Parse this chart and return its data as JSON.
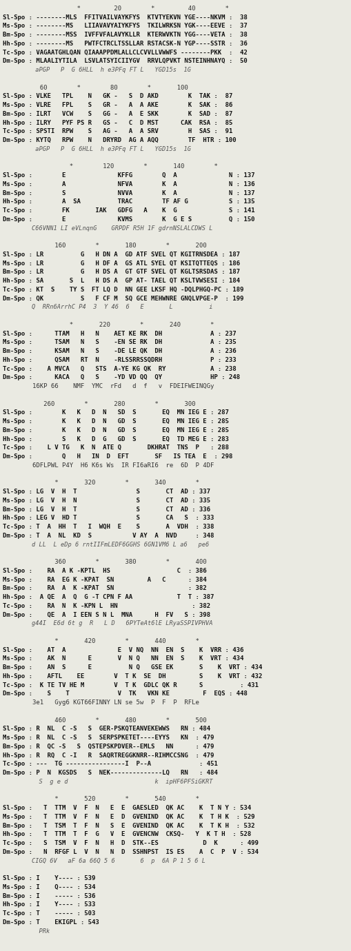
{
  "background_color": "#eaeae2",
  "font_size": 6.5,
  "lines": [
    "                    *         20        *         40        *",
    "Sl-Spo : --------MLS  FFITVAILVAYKFYS  KTVTYEKVN YGE----NKVM :  38",
    "Ms-Spo : --------MS   LIIAVAVYAIYKFYS  TKILWRKSN YGK----EEVE :  37",
    "Bm-Spo : --------MSS  IVFFVFALAVYKLLR  KTERWVKTN YGG----VETA :  38",
    "Hh-Spo : --------MS   PWTFCTRCLTSSLLAR RSTACSK-N YGP----SSTR :  36",
    "Tc-Spo : VAGAATGHLQAN QIAAAPPDMLALLCLCVVLLVWWFS --------PKK  :  42",
    "Dm-Spo : MLAALIYTILA  LSVLATSYICIIYGV  RRVLQPVKT NSTEINHNAYQ :  50",
    "         aPGP   P  G 6HLL  h e3PFq FT L   YGD15s  1G",
    "",
    "          60        *        80        *       100",
    "Sl-Spo : VLKE   TPL    N   GK -   S  D AKD        K  TAK :  87",
    "Ms-Spo : VLRE   FPL    S   GR -   A  A AKE        K  SAK :  86",
    "Bm-Spo : ILRT   VCW    S   GG -   A  E SKK        K  SAD :  87",
    "Hh-Spo : ILRY   PYF PS R   GS -   C  D MST      CAK  RSA :  85",
    "Tc-Spo : SPSTI  RPW    S   AG -   A  A SRV        H  SAS :  91",
    "Dm-Spo : KYTQ   RPW    N   DRYRD  AG A AQQ        TF  HTR : 100",
    "         aPGP   P  G 6HLL  h e3PFq FT L   YGD15s  1G",
    "",
    "                  *        120        *       140        *",
    "Sl-Spo :        E              KFFG        Q  A              N : 137",
    "Ms-Spo :        A              NFVA        K  A              N : 136",
    "Bm-Spo :        S              NVVA        K  A              N : 137",
    "Hh-Spo :        A  SA          TRAC        TF AF G           S : 135",
    "Tc-Spo :        FK       IAK   GDFG   A    K  G              S : 141",
    "Dm-Spo :        E              KVMS        K  G E S          Q : 150",
    "        C66VNN1 LI eVLnqnG    GRPDF R5H 1F gdrnNSLALCDWS L",
    "",
    "              160        *       180        *       200",
    "Sl-Spo : LR          G   H DN A  GD ATF SVEL QT KGITRNSDEA : 187",
    "Ms-Spo : LR          G   H DF A  GS ATL SYEL QT KSITQTTEQS : 186",
    "Bm-Spo : LR          G   H DS A  GT GTF SVEL QT KGLTSRSDAS : 187",
    "Hh-Spo : SA       S  L   H DS A  GP AT- TAEL QT KSLTVWSESI : 184",
    "Tc-Spo : KT  S    TY S  FT LQ D  NN GEE LKSF HQ -DQLPHGQ-PC : 189",
    "Dm-Spo : QK          S   F CF M  SQ GCE MEHWNRE GNQLVPGE-P  : 199",
    "        Q  RRn6ArrhC P4  3  Y 46  6   E       L          i",
    "",
    "                  *       220        *       240        *",
    "Sl-Spo :      TTAM   H   N    AET KE RK  DH             A : 237",
    "Ms-Spo :      TSAM   N   S    -EN SE RK  DH             A : 235",
    "Bm-Spo :      KSAM   N   S    -DE LE QK  DH             A : 236",
    "Hh-Spo :      QSAM   RT  N    -RLSSRRSSQDRH             P : 233",
    "Tc-Spo :    A MVCA   Q   STS  A-YE KG QK  RY            A : 238",
    "Dm-Spo :      KACA   Q   S    -YD VD QQ  QY             HP : 248",
    "        16KP 66    NMF  YMC  rFd   d  f   v  FDEIFWEINQGy",
    "",
    "           260        *       280        *       300",
    "Sl-Spo :        K   K   D  N   SD  S       EQ  MN IEG E : 287",
    "Ms-Spo :        K   K   D  N   GD  S       EQ  MN IEG E : 285",
    "Bm-Spo :        K   K   D  N   GD  S       EQ  MN IEG E : 285",
    "Hh-Spo :        S   K   D  G   GD  S       EQ  TD MEG E : 283",
    "Tc-Spo :    L V TG   K  N  ATE Q       DKHRAT  TNS  P   : 288",
    "Dm-Spo :        Q   H   IN  D  EFT       SF   IS TEA  E  : 298",
    "        6DFLPWL P4Y  H6 K6s Ws  IR FI6aRI6  re  6D  P 4DF",
    "",
    "              *       320        *       340        *",
    "Sl-Spo : LG  V  H  T                S       CT  AD : 337",
    "Ms-Spo : LG  V  H  N                S       CT  AD : 335",
    "Bm-Spo : LG  V  H  T                S       CT  AD : 336",
    "Hh-Spo : LEG V  HD T                S       CA   S  : 333",
    "Tc-Spo : T  A  HH  T   I  WQH  E    S       A  VDH  : 338",
    "Dm-Spo : T  A  NL  KD  S           V AY  A  NVD     : 348",
    "        d LL  L eDp 6 rntIIFmLEDF6GGHS 6GN1VM6 L a6   pe6",
    "",
    "              360        *       380        *       400",
    "Sl-Spo :    RA  A K -KPTL  HS                  C  : 386",
    "Ms-Spo :    RA  EG K -KPAT  SN         A   C      : 384",
    "Bm-Spo :    RA  A  K -KPAT  SN                    : 382",
    "Hh-Spo :  A QE  A  Q  G -T CPN F AA            T  T : 387",
    "Tc-Spo :    RA  N  K -KPN L  HN                    : 382",
    "Dm-Spo :    QE  A  I EEN S N L  MNA      H  FV   S : 398",
    "        g44I  E6d 6t g  R   L D   6PYTeAt6lE LRyaSSPIVPHVA",
    "",
    "              *       420        *       440        *",
    "Sl-Spo :    AT  A              E  V NQ  NN  EN  S    K  VRR : 436",
    "Ms-Spo :    AK  N      E       V  N Q   NN  EN  S    K  VRT : 434",
    "Bm-Spo :    AN  S      E          N Q   GSE EK       S    K  VRT : 434",
    "Hh-Spo :    AFTL    EE        V  T K  SE  DH         S    K  VRT : 432",
    "Tc-Spo :  K TE TV HE M        V  T K  GDLC QK R      S          : 431",
    "Dm-Spo :    S    T             V  TK   VKN KE         F  EQS : 448",
    "        3e1   Gyg6 KGT66FINNY LN se 5w  P  F  P  RFLe",
    "",
    "              460        *       480        *       500",
    "Sl-Spo : R  NL  C -S   S  GER-PSKQTEANVEKEWWS   RN : 484",
    "Ms-Spo : R  NL  C -S   S  SERPSPKETET----EYYS   KN  : 479",
    "Bm-Spo : R  QC -S   S  QSTEPSKPDVER--EMLS   NN      : 479",
    "Hh-Spo : R  RQ  C -I   R  SAQRTREGGKNRR--RIHMCCSNG  : 479",
    "Tc-Spo : ---  TG ----------------I  P--A             : 451",
    "Dm-Spo : P  N  KGSDS   S  NEK--------------LQ   RN   : 484",
    "          S  g e d                        k  ipHF6PFSiGKRT",
    "",
    "              *       520        *       540        *",
    "Sl-Spo :   T  TTM  V  F  N   E  E  GAESLED  QK AC    K  T N Y : 534",
    "Ms-Spo :   T  TTM  V  F  N   E  D  GVENIND  QK AC    K  T H K  : 529",
    "Bm-Spo :   T  TSM  T  F  N   S  E  GVENIND  QK AC    K  T K H  : 532",
    "Hh-Spo :   T  TTM  T  F  G   V  E  GVENCNW  CKSQ-   Y  K T H  : 528",
    "Tc-Spo :   S  TSM  V  F  N   H  D  STK--ES            D  K      : 499",
    "Dm-Spo :   N  RFGF L  V  N   N  D  SSHNPST  IS ES    A  C  P  V : 534",
    "        CIGQ 6V   aF 6a 66Q 5 6       6  p  6A P 1 5 6 L",
    "",
    "Sl-Spo : I    Y---- : 539",
    "Ms-Spo : I    Q---- : 534",
    "Bm-Spo : I    ----- : 536",
    "Hh-Spo : I    Y---- : 533",
    "Tc-Spo : T    ----- : 503",
    "Dm-Spo : T    EKIGPL : 543",
    "          PRk"
  ]
}
